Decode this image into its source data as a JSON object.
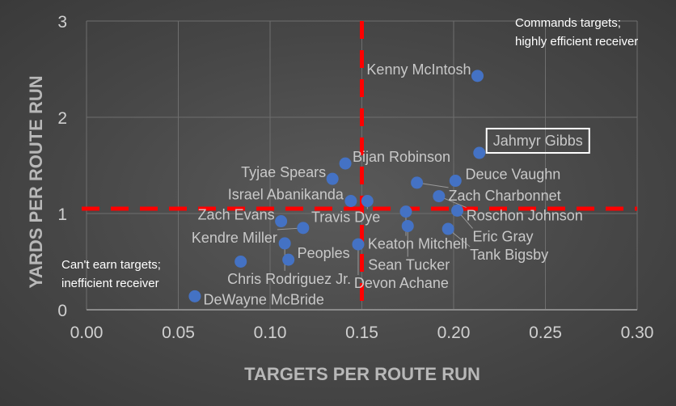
{
  "chart_data": {
    "type": "scatter",
    "xlabel": "TARGETS PER ROUTE RUN",
    "ylabel": "YARDS PER ROUTE RUN",
    "xlim": [
      0,
      0.3
    ],
    "ylim": [
      0,
      3
    ],
    "x_ticks": [
      "0.00",
      "0.05",
      "0.10",
      "0.15",
      "0.20",
      "0.25",
      "0.30"
    ],
    "y_ticks": [
      "0",
      "1",
      "2",
      "3"
    ],
    "grid": true,
    "reference_lines": {
      "x": 0.15,
      "y": 1.05,
      "color": "#ff0000"
    },
    "point_color": "#4472c4",
    "points": [
      {
        "name": "Kenny McIntosh",
        "x": 0.213,
        "y": 2.43
      },
      {
        "name": "Jahmyr Gibbs",
        "x": 0.214,
        "y": 1.63,
        "highlight": true
      },
      {
        "name": "Bijan Robinson",
        "x": 0.141,
        "y": 1.52
      },
      {
        "name": "Tyjae Spears",
        "x": 0.134,
        "y": 1.36
      },
      {
        "name": "Zach Charbonnet",
        "x": 0.18,
        "y": 1.32
      },
      {
        "name": "Deuce Vaughn",
        "x": 0.201,
        "y": 1.34
      },
      {
        "name": "Roschon Johnson",
        "x": 0.192,
        "y": 1.18
      },
      {
        "name": "Israel Abanikanda",
        "x": 0.144,
        "y": 1.13
      },
      {
        "name": "Travis Dye",
        "x": 0.153,
        "y": 1.13
      },
      {
        "name": "Keaton Mitchell",
        "x": 0.174,
        "y": 1.02
      },
      {
        "name": "Eric Gray",
        "x": 0.202,
        "y": 1.03
      },
      {
        "name": "Sean Tucker",
        "x": 0.175,
        "y": 0.87
      },
      {
        "name": "Tank Bigsby",
        "x": 0.197,
        "y": 0.84
      },
      {
        "name": "Zach Evans",
        "x": 0.106,
        "y": 0.92
      },
      {
        "name": "Kendre Miller",
        "x": 0.118,
        "y": 0.85
      },
      {
        "name": "Chris Rodriguez Jr.",
        "x": 0.108,
        "y": 0.69
      },
      {
        "name": "Devon Achane",
        "x": 0.148,
        "y": 0.68
      },
      {
        "name": "Peoples",
        "x": 0.11,
        "y": 0.52
      },
      {
        "name": "",
        "x": 0.084,
        "y": 0.5
      },
      {
        "name": "DeWayne McBride",
        "x": 0.059,
        "y": 0.14
      }
    ],
    "annotations": [
      {
        "text": [
          "Commands targets;",
          "highly efficient receiver"
        ],
        "position": "top-right"
      },
      {
        "text": [
          "Can't earn targets;",
          "inefficient receiver"
        ],
        "position": "bottom-left"
      }
    ]
  }
}
